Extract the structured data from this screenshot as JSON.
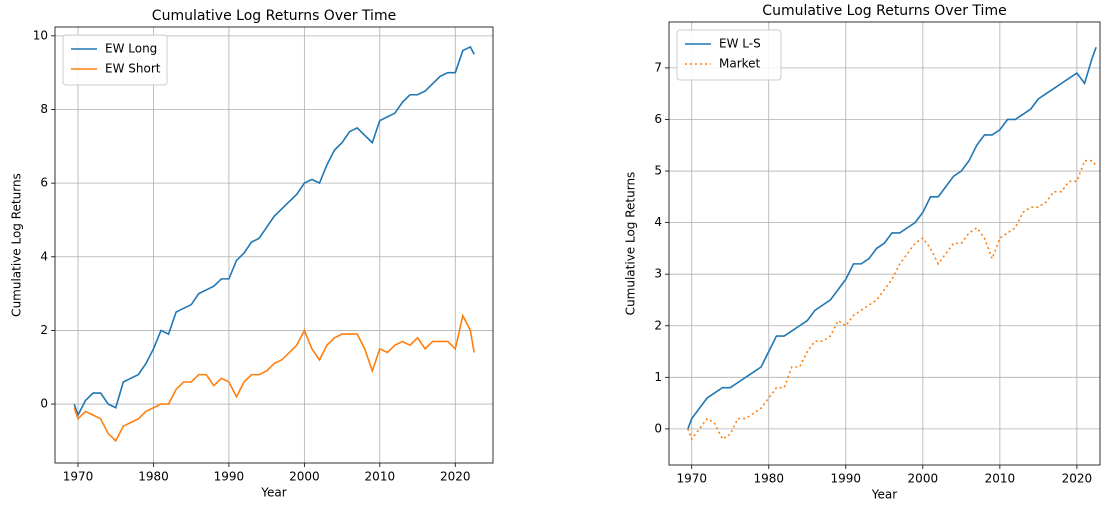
{
  "chart_data": [
    {
      "type": "line",
      "title": "Cumulative Log Returns Over Time",
      "x_label": "Year",
      "y_label": "Cumulative Log Returns",
      "x": [
        1969.5,
        1970,
        1971,
        1972,
        1973,
        1974,
        1975,
        1976,
        1977,
        1978,
        1979,
        1980,
        1981,
        1982,
        1983,
        1984,
        1985,
        1986,
        1987,
        1988,
        1989,
        1990,
        1991,
        1992,
        1993,
        1994,
        1995,
        1996,
        1997,
        1998,
        1999,
        2000,
        2001,
        2002,
        2003,
        2004,
        2005,
        2006,
        2007,
        2008,
        2009,
        2010,
        2011,
        2012,
        2013,
        2014,
        2015,
        2016,
        2017,
        2018,
        2019,
        2020,
        2021,
        2022,
        2022.5
      ],
      "series": [
        {
          "name": "EW Long",
          "color": "#1f77b4",
          "style": "solid",
          "values": [
            0,
            -0.3,
            0.1,
            0.3,
            0.3,
            0,
            -0.1,
            0.6,
            0.7,
            0.8,
            1.1,
            1.5,
            2.0,
            1.9,
            2.5,
            2.6,
            2.7,
            3.0,
            3.1,
            3.2,
            3.4,
            3.4,
            3.9,
            4.1,
            4.4,
            4.5,
            4.8,
            5.1,
            5.3,
            5.5,
            5.7,
            6.0,
            6.1,
            6.0,
            6.5,
            6.9,
            7.1,
            7.4,
            7.5,
            7.3,
            7.1,
            7.7,
            7.8,
            7.9,
            8.2,
            8.4,
            8.4,
            8.5,
            8.7,
            8.9,
            9.0,
            9.0,
            9.6,
            9.7,
            9.5
          ]
        },
        {
          "name": "EW Short",
          "color": "#ff7f0e",
          "style": "solid",
          "values": [
            -0.1,
            -0.4,
            -0.2,
            -0.3,
            -0.4,
            -0.8,
            -1.0,
            -0.6,
            -0.5,
            -0.4,
            -0.2,
            -0.1,
            0.0,
            0.0,
            0.4,
            0.6,
            0.6,
            0.8,
            0.8,
            0.5,
            0.7,
            0.6,
            0.2,
            0.6,
            0.8,
            0.8,
            0.9,
            1.1,
            1.2,
            1.4,
            1.6,
            2.0,
            1.5,
            1.2,
            1.6,
            1.8,
            1.9,
            1.9,
            1.9,
            1.5,
            0.9,
            1.5,
            1.4,
            1.6,
            1.7,
            1.6,
            1.8,
            1.5,
            1.7,
            1.7,
            1.7,
            1.5,
            2.4,
            2.0,
            1.4
          ]
        }
      ],
      "xlim": [
        1966.95,
        2025.0
      ],
      "xticks": [
        1970,
        1980,
        1990,
        2000,
        2010,
        2020
      ],
      "ylim": [
        -1.6,
        10.24
      ],
      "yticks": [
        0,
        2,
        4,
        6,
        8,
        10
      ],
      "grid": true,
      "legend": "upper left"
    },
    {
      "type": "line",
      "title": "Cumulative Log Returns Over Time",
      "x_label": "Year",
      "y_label": "Cumulative Log Returns",
      "x": [
        1969.5,
        1970,
        1971,
        1972,
        1973,
        1974,
        1975,
        1976,
        1977,
        1978,
        1979,
        1980,
        1981,
        1982,
        1983,
        1984,
        1985,
        1986,
        1987,
        1988,
        1989,
        1990,
        1991,
        1992,
        1993,
        1994,
        1995,
        1996,
        1997,
        1998,
        1999,
        2000,
        2001,
        2002,
        2003,
        2004,
        2005,
        2006,
        2007,
        2008,
        2009,
        2010,
        2011,
        2012,
        2013,
        2014,
        2015,
        2016,
        2017,
        2018,
        2019,
        2020,
        2021,
        2022,
        2022.5
      ],
      "series": [
        {
          "name": "EW L-S",
          "color": "#1f77b4",
          "style": "solid",
          "values": [
            0,
            0.2,
            0.4,
            0.6,
            0.7,
            0.8,
            0.8,
            0.9,
            1.0,
            1.1,
            1.2,
            1.5,
            1.8,
            1.8,
            1.9,
            2.0,
            2.1,
            2.3,
            2.4,
            2.5,
            2.7,
            2.9,
            3.2,
            3.2,
            3.3,
            3.5,
            3.6,
            3.8,
            3.8,
            3.9,
            4.0,
            4.2,
            4.5,
            4.5,
            4.7,
            4.9,
            5.0,
            5.2,
            5.5,
            5.7,
            5.7,
            5.8,
            6.0,
            6.0,
            6.1,
            6.2,
            6.4,
            6.5,
            6.6,
            6.7,
            6.8,
            6.9,
            6.7,
            7.2,
            7.4
          ]
        },
        {
          "name": "Market",
          "color": "#ff7f0e",
          "style": "dotted",
          "values": [
            0,
            -0.2,
            0.0,
            0.2,
            0.1,
            -0.2,
            -0.1,
            0.2,
            0.2,
            0.3,
            0.4,
            0.6,
            0.8,
            0.8,
            1.2,
            1.2,
            1.5,
            1.7,
            1.7,
            1.8,
            2.1,
            2.0,
            2.2,
            2.3,
            2.4,
            2.5,
            2.7,
            2.9,
            3.2,
            3.4,
            3.6,
            3.7,
            3.5,
            3.2,
            3.4,
            3.6,
            3.6,
            3.8,
            3.9,
            3.7,
            3.3,
            3.7,
            3.8,
            3.9,
            4.2,
            4.3,
            4.3,
            4.4,
            4.6,
            4.6,
            4.8,
            4.8,
            5.2,
            5.2,
            5.1
          ]
        }
      ],
      "xlim": [
        1967.05,
        2023.0
      ],
      "xticks": [
        1970,
        1980,
        1990,
        2000,
        2010,
        2020
      ],
      "ylim": [
        -0.7,
        7.89
      ],
      "yticks": [
        0,
        1,
        2,
        3,
        4,
        5,
        6,
        7
      ],
      "grid": true,
      "legend": "upper left"
    }
  ]
}
